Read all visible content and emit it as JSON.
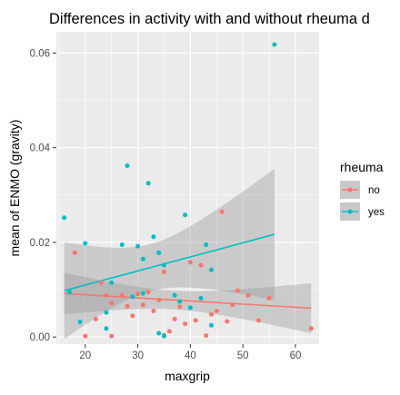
{
  "chart_data": {
    "type": "scatter",
    "title": "Differences in activity with and without rheuma d",
    "xlabel": "maxgrip",
    "ylabel": "mean of ENMO (gravity)",
    "xlim": [
      14.5,
      64.5
    ],
    "ylim": [
      -0.0015,
      0.0645
    ],
    "xticks": [
      20,
      30,
      40,
      50,
      60
    ],
    "yticks": [
      0.0,
      0.02,
      0.04,
      0.06
    ],
    "ytick_labels": [
      "0.00",
      "0.02",
      "0.04",
      "0.06"
    ],
    "grid": true,
    "legend": {
      "title": "rheuma",
      "position": "right"
    },
    "series": [
      {
        "name": "no",
        "color": "#F8766D",
        "points": [
          [
            18,
            0.0178
          ],
          [
            20,
            0.0002
          ],
          [
            22,
            0.0038
          ],
          [
            23,
            0.0115
          ],
          [
            24,
            0.0088
          ],
          [
            25,
            0.0072
          ],
          [
            25,
            0.0002
          ],
          [
            27,
            0.0088
          ],
          [
            28,
            0.0065
          ],
          [
            29,
            0.0045
          ],
          [
            30,
            0.0091
          ],
          [
            31,
            0.0068
          ],
          [
            32,
            0.0095
          ],
          [
            33,
            0.0055
          ],
          [
            34,
            0.0078
          ],
          [
            35,
            0.0138
          ],
          [
            35,
            0.0004
          ],
          [
            36,
            0.0012
          ],
          [
            37,
            0.0038
          ],
          [
            38,
            0.0064
          ],
          [
            39,
            0.0028
          ],
          [
            40,
            0.0158
          ],
          [
            41,
            0.0035
          ],
          [
            42,
            0.0152
          ],
          [
            43,
            0.0003
          ],
          [
            44,
            0.0048
          ],
          [
            45,
            0.0055
          ],
          [
            46,
            0.0265
          ],
          [
            47,
            0.0033
          ],
          [
            48,
            0.0068
          ],
          [
            49,
            0.0098
          ],
          [
            51,
            0.0088
          ],
          [
            53,
            0.0035
          ],
          [
            55,
            0.0082
          ],
          [
            63,
            0.0018
          ]
        ],
        "trend": {
          "x": [
            16,
            63
          ],
          "y": [
            0.0092,
            0.0061
          ]
        }
      },
      {
        "name": "yes",
        "color": "#00BFC4",
        "points": [
          [
            16,
            0.0252
          ],
          [
            17,
            0.0095
          ],
          [
            19,
            0.0032
          ],
          [
            20,
            0.0198
          ],
          [
            24,
            0.0052
          ],
          [
            24,
            0.0018
          ],
          [
            25,
            0.0115
          ],
          [
            27,
            0.0195
          ],
          [
            28,
            0.0362
          ],
          [
            29,
            0.0085
          ],
          [
            30,
            0.0192
          ],
          [
            31,
            0.0165
          ],
          [
            31,
            0.0092
          ],
          [
            32,
            0.0325
          ],
          [
            33,
            0.0212
          ],
          [
            34,
            0.0178
          ],
          [
            34,
            0.0008
          ],
          [
            35,
            0.0152
          ],
          [
            35,
            0.0002
          ],
          [
            37,
            0.0088
          ],
          [
            38,
            0.0075
          ],
          [
            39,
            0.0258
          ],
          [
            40,
            0.0062
          ],
          [
            42,
            0.0082
          ],
          [
            43,
            0.0195
          ],
          [
            44,
            0.0142
          ],
          [
            44,
            0.0025
          ],
          [
            56,
            0.0618
          ]
        ],
        "trend": {
          "x": [
            16,
            56
          ],
          "y": [
            0.0098,
            0.0217
          ]
        }
      }
    ]
  }
}
